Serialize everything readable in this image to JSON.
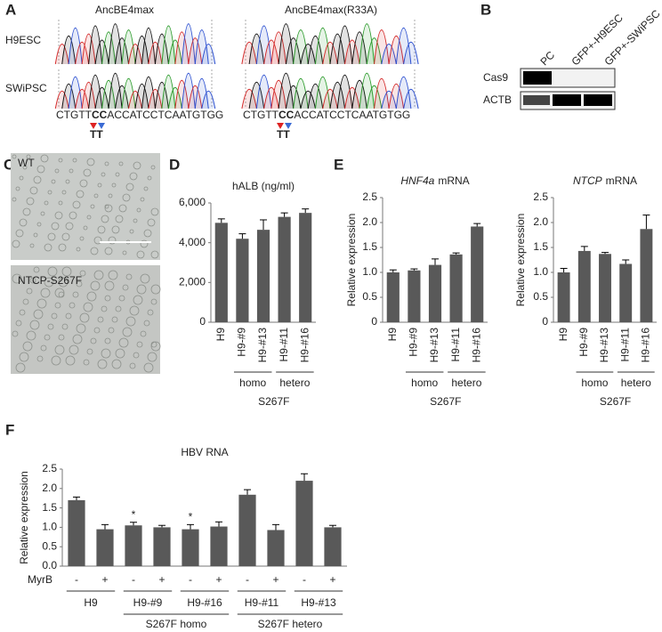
{
  "panel_labels": [
    "A",
    "B",
    "C",
    "D",
    "E",
    "F"
  ],
  "panel_a": {
    "columns": [
      "AncBE4max",
      "AncBE4max(R33A)"
    ],
    "rows": [
      "H9ESC",
      "SWiPSC"
    ],
    "sequence": [
      "CTGTT",
      "CC",
      "ACCATCCTCAATGTGG"
    ],
    "edit": "TT"
  },
  "panel_b": {
    "lanes": [
      "PC",
      "GFP+-H9ESC",
      "GFP+-SWiPSC"
    ],
    "proteins": [
      "Cas9",
      "ACTB"
    ]
  },
  "panel_c": {
    "images": [
      "WT",
      "NTCP-S267F"
    ]
  },
  "chart_data": [
    {
      "type": "bar",
      "title": "hALB (ng/ml)",
      "color": "#595959",
      "categories": [
        "H9",
        "H9-#9",
        "H9-#13",
        "H9-#11",
        "H9-#16"
      ],
      "values": [
        5000,
        4200,
        4650,
        5300,
        5500
      ],
      "errors": [
        200,
        250,
        500,
        200,
        200
      ],
      "ylim": [
        0,
        6000
      ],
      "yticks": [
        0,
        {
          "value": 2000,
          "label": "2,000"
        },
        {
          "value": 4000,
          "label": "4,000"
        },
        {
          "value": 6000,
          "label": "6,000"
        }
      ],
      "groups": [
        "homo",
        "hetero"
      ],
      "group_caption": "S267F"
    },
    {
      "type": "bar",
      "title": {
        "gene": "HNF4a",
        "suffix": "mRNA"
      },
      "ylabel": "Relative expression",
      "color": "#595959",
      "categories": [
        "H9",
        "H9-#9",
        "H9-#13",
        "H9-#11",
        "H9-#16"
      ],
      "values": [
        1.0,
        1.04,
        1.15,
        1.36,
        1.92
      ],
      "errors": [
        0.05,
        0.03,
        0.12,
        0.03,
        0.06
      ],
      "ylim": [
        0,
        2.5
      ],
      "yticks": [
        0,
        0.5,
        {
          "value": 1,
          "label": "1.0"
        },
        1.5,
        {
          "value": 2,
          "label": "2.0"
        },
        2.5
      ],
      "groups": [
        "homo",
        "hetero"
      ],
      "group_caption": "S267F"
    },
    {
      "type": "bar",
      "title": {
        "gene": "NTCP",
        "suffix": "mRNA"
      },
      "ylabel": "Relative expression",
      "color": "#595959",
      "categories": [
        "H9",
        "H9-#9",
        "H9-#13",
        "H9-#11",
        "H9-#16"
      ],
      "values": [
        1.0,
        1.43,
        1.37,
        1.17,
        1.87
      ],
      "errors": [
        0.08,
        0.09,
        0.03,
        0.08,
        0.28
      ],
      "ylim": [
        0,
        2.5
      ],
      "yticks": [
        0,
        0.5,
        {
          "value": 1,
          "label": "1.0"
        },
        1.5,
        {
          "value": 2,
          "label": "2.0"
        },
        2.5
      ],
      "groups": [
        "homo",
        "hetero"
      ],
      "group_caption": "S267F"
    },
    {
      "type": "bar",
      "title": "HBV RNA",
      "ylabel": "Relative expression",
      "color": "#595959",
      "row_label": "MyrB",
      "categories": [
        "-",
        "+",
        "-",
        "+",
        "-",
        "+",
        "-",
        "+",
        "-",
        "+"
      ],
      "values": [
        1.7,
        0.95,
        1.05,
        1.0,
        0.95,
        1.02,
        1.84,
        0.93,
        2.2,
        1.0
      ],
      "errors": [
        0.08,
        0.12,
        0.08,
        0.05,
        0.12,
        0.12,
        0.13,
        0.14,
        0.18,
        0.05
      ],
      "markers": [
        null,
        null,
        "*",
        null,
        "*",
        null,
        null,
        null,
        null,
        null
      ],
      "ylim": [
        0,
        2.5
      ],
      "yticks": [
        {
          "value": 0,
          "label": "0.0"
        },
        0.5,
        {
          "value": 1,
          "label": "1.0"
        },
        1.5,
        {
          "value": 2,
          "label": "2.0"
        },
        2.5
      ],
      "groups": [
        "H9",
        "H9-#9",
        "H9-#16",
        "H9-#11",
        "H9-#13"
      ],
      "supergroups": [
        "S267F homo",
        "S267F hetero"
      ]
    }
  ]
}
